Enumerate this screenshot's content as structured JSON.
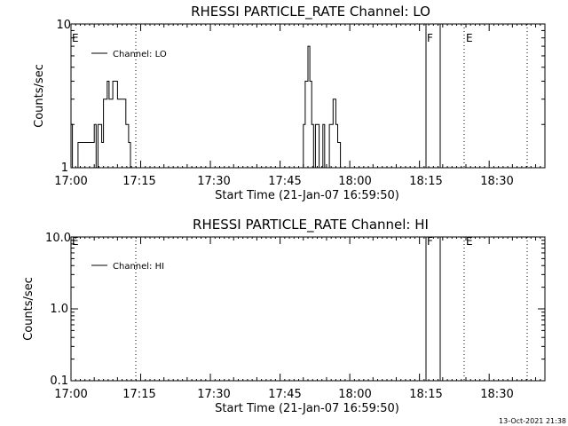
{
  "chart_data": [
    {
      "type": "line",
      "title": "RHESSI PARTICLE_RATE Channel: LO",
      "xlabel": "Start Time (21-Jan-07 16:59:50)",
      "ylabel": "Counts/sec",
      "yscale": "log",
      "ylim": [
        1,
        10
      ],
      "ytick_labels": [
        "1",
        "10"
      ],
      "xlim_minutes": [
        0,
        102
      ],
      "x_tick_labels": [
        "17:00",
        "17:15",
        "17:30",
        "17:45",
        "18:00",
        "18:15",
        "18:30"
      ],
      "legend": "Channel: LO",
      "legend_placement": "top-left",
      "markers": [
        {
          "label": "E",
          "time": "17:00",
          "style": "none"
        },
        {
          "label": "",
          "time": "17:13.5",
          "style": "dotted"
        },
        {
          "label": "F",
          "time": "18:15",
          "style": "solid"
        },
        {
          "label": "",
          "time": "18:18",
          "style": "solid"
        },
        {
          "label": "E",
          "time": "18:23",
          "style": "dotted"
        },
        {
          "label": "",
          "time": "18:36",
          "style": "dotted"
        }
      ],
      "series": [
        {
          "name": "Channel: LO",
          "points": [
            [
              0,
              2
            ],
            [
              0.3,
              2
            ],
            [
              0.3,
              1
            ],
            [
              1.5,
              1
            ],
            [
              1.5,
              1.5
            ],
            [
              5,
              1.5
            ],
            [
              5,
              2
            ],
            [
              5.4,
              2
            ],
            [
              5.4,
              1
            ],
            [
              5.8,
              1
            ],
            [
              5.8,
              2
            ],
            [
              6.6,
              2
            ],
            [
              6.6,
              1.5
            ],
            [
              7,
              1.5
            ],
            [
              7,
              3
            ],
            [
              7.8,
              3
            ],
            [
              7.8,
              4
            ],
            [
              8.2,
              4
            ],
            [
              8.2,
              3
            ],
            [
              9,
              3
            ],
            [
              9,
              4
            ],
            [
              10,
              4
            ],
            [
              10,
              3
            ],
            [
              11.8,
              3
            ],
            [
              11.8,
              2
            ],
            [
              12.4,
              2
            ],
            [
              12.4,
              1.5
            ],
            [
              12.8,
              1.5
            ],
            [
              12.8,
              1
            ],
            [
              50,
              1
            ],
            [
              50,
              2
            ],
            [
              50.4,
              2
            ],
            [
              50.4,
              4
            ],
            [
              51,
              4
            ],
            [
              51,
              7
            ],
            [
              51.4,
              7
            ],
            [
              51.4,
              4
            ],
            [
              51.8,
              4
            ],
            [
              51.8,
              2
            ],
            [
              52.2,
              2
            ],
            [
              52.2,
              1
            ],
            [
              52.6,
              1
            ],
            [
              52.6,
              2
            ],
            [
              53.4,
              2
            ],
            [
              53.4,
              1
            ],
            [
              54.2,
              1
            ],
            [
              54.2,
              2
            ],
            [
              54.6,
              2
            ],
            [
              54.6,
              1
            ],
            [
              55.6,
              1
            ],
            [
              55.6,
              2
            ],
            [
              56.4,
              2
            ],
            [
              56.4,
              3
            ],
            [
              57,
              3
            ],
            [
              57,
              2
            ],
            [
              57.4,
              2
            ],
            [
              57.4,
              1.5
            ],
            [
              58,
              1.5
            ],
            [
              58,
              1
            ],
            [
              102,
              1
            ]
          ]
        }
      ]
    },
    {
      "type": "line",
      "title": "RHESSI PARTICLE_RATE Channel: HI",
      "xlabel": "Start Time (21-Jan-07 16:59:50)",
      "ylabel": "Counts/sec",
      "yscale": "log",
      "ylim": [
        0.1,
        10
      ],
      "ytick_labels": [
        "0.1",
        "1.0",
        "10.0"
      ],
      "xlim_minutes": [
        0,
        102
      ],
      "x_tick_labels": [
        "17:00",
        "17:15",
        "17:30",
        "17:45",
        "18:00",
        "18:15",
        "18:30"
      ],
      "legend": "Channel: HI",
      "legend_placement": "top-left",
      "markers": [
        {
          "label": "E",
          "time": "17:00",
          "style": "none"
        },
        {
          "label": "",
          "time": "17:13.5",
          "style": "dotted"
        },
        {
          "label": "F",
          "time": "18:15",
          "style": "solid"
        },
        {
          "label": "",
          "time": "18:18",
          "style": "solid"
        },
        {
          "label": "E",
          "time": "18:23",
          "style": "dotted"
        },
        {
          "label": "",
          "time": "18:36",
          "style": "dotted"
        }
      ],
      "series": [
        {
          "name": "Channel: HI",
          "points": []
        }
      ]
    }
  ],
  "footer": {
    "timestamp": "13-Oct-2021 21:38"
  }
}
